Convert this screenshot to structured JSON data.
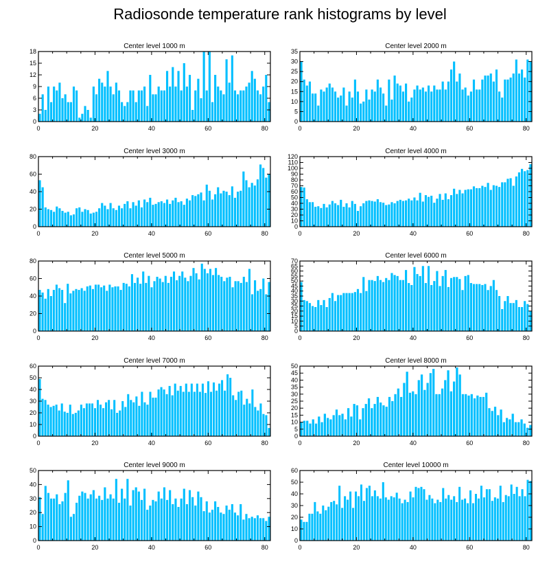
{
  "title": "Radiosonde temperature rank histograms by level",
  "colors": {
    "bar": "#00BFFF",
    "axis": "#000000",
    "background": "#FFFFFF"
  },
  "chart_data": [
    {
      "type": "bar",
      "title": "Center level 1000 m",
      "xlim": [
        0,
        82
      ],
      "ylim": [
        0,
        18
      ],
      "xticks": [
        0,
        20,
        40,
        60,
        80
      ],
      "yticks": [
        0,
        3,
        6,
        9,
        12,
        15,
        18
      ],
      "values": [
        2,
        7,
        3,
        9,
        5,
        9,
        8,
        10,
        6,
        7,
        5,
        5,
        9,
        8,
        1,
        2,
        4,
        3,
        1,
        9,
        7,
        11,
        10,
        9,
        13,
        9,
        7,
        10,
        8,
        5,
        4,
        5,
        8,
        8,
        5,
        8,
        8,
        9,
        4,
        12,
        7,
        7,
        9,
        8,
        8,
        13,
        9,
        14,
        9,
        13,
        8,
        15,
        9,
        12,
        3,
        8,
        11,
        6,
        18,
        8,
        18,
        5,
        12,
        9,
        8,
        7,
        16,
        10,
        17,
        8,
        7,
        8,
        8,
        9,
        10,
        13,
        11,
        8,
        7,
        9,
        12,
        5
      ],
      "xlabel": "",
      "ylabel": ""
    },
    {
      "type": "bar",
      "title": "Center level 2000 m",
      "xlim": [
        0,
        82
      ],
      "ylim": [
        0,
        35
      ],
      "xticks": [
        0,
        20,
        40,
        60,
        80
      ],
      "yticks": [
        0,
        5,
        10,
        15,
        20,
        25,
        30,
        35
      ],
      "values": [
        30,
        21,
        18,
        20,
        14,
        14,
        8,
        16,
        15,
        17,
        19,
        17,
        15,
        12,
        13,
        17,
        8,
        15,
        12,
        21,
        15,
        9,
        10,
        16,
        11,
        16,
        15,
        21,
        17,
        14,
        8,
        21,
        11,
        23,
        19,
        18,
        15,
        19,
        10,
        12,
        16,
        18,
        16,
        17,
        15,
        18,
        15,
        18,
        16,
        16,
        20,
        16,
        20,
        26,
        30,
        20,
        24,
        16,
        17,
        13,
        15,
        21,
        16,
        16,
        21,
        23,
        23,
        24,
        20,
        26,
        15,
        12,
        21,
        21,
        22,
        24,
        31,
        24,
        26,
        22,
        31,
        30
      ],
      "xlabel": "",
      "ylabel": ""
    },
    {
      "type": "bar",
      "title": "Center level 3000 m",
      "xlim": [
        0,
        82
      ],
      "ylim": [
        0,
        80
      ],
      "xticks": [
        0,
        20,
        40,
        60,
        80
      ],
      "yticks": [
        0,
        20,
        40,
        60,
        80
      ],
      "values": [
        53,
        45,
        22,
        20,
        19,
        17,
        23,
        21,
        18,
        16,
        17,
        13,
        14,
        21,
        22,
        17,
        20,
        19,
        15,
        16,
        17,
        21,
        27,
        24,
        20,
        27,
        21,
        19,
        24,
        21,
        26,
        29,
        21,
        28,
        24,
        30,
        22,
        31,
        28,
        33,
        25,
        26,
        28,
        29,
        27,
        31,
        26,
        30,
        33,
        28,
        29,
        25,
        32,
        30,
        36,
        35,
        37,
        39,
        30,
        48,
        41,
        31,
        37,
        45,
        38,
        41,
        40,
        36,
        46,
        33,
        40,
        41,
        63,
        53,
        45,
        50,
        47,
        54,
        71,
        67,
        56,
        60
      ],
      "xlabel": "",
      "ylabel": ""
    },
    {
      "type": "bar",
      "title": "Center level 4000 m",
      "xlim": [
        0,
        82
      ],
      "ylim": [
        0,
        120
      ],
      "xticks": [
        0,
        20,
        40,
        60,
        80
      ],
      "yticks": [
        0,
        10,
        20,
        30,
        40,
        50,
        60,
        70,
        80,
        90,
        100,
        110,
        120
      ],
      "values": [
        68,
        67,
        47,
        42,
        42,
        34,
        35,
        32,
        39,
        33,
        38,
        44,
        40,
        37,
        46,
        34,
        40,
        33,
        44,
        39,
        27,
        35,
        40,
        44,
        45,
        44,
        43,
        47,
        42,
        41,
        37,
        38,
        42,
        40,
        44,
        46,
        44,
        45,
        48,
        45,
        50,
        45,
        58,
        43,
        54,
        51,
        53,
        41,
        48,
        56,
        46,
        57,
        47,
        54,
        65,
        56,
        63,
        57,
        63,
        64,
        64,
        69,
        66,
        66,
        70,
        68,
        75,
        63,
        71,
        70,
        68,
        76,
        76,
        82,
        83,
        70,
        86,
        93,
        99,
        95,
        97,
        107
      ],
      "xlabel": "",
      "ylabel": ""
    },
    {
      "type": "bar",
      "title": "Center level 5000 m",
      "xlim": [
        0,
        82
      ],
      "ylim": [
        0,
        80
      ],
      "xticks": [
        0,
        20,
        40,
        60,
        80
      ],
      "yticks": [
        0,
        20,
        40,
        60,
        80
      ],
      "values": [
        47,
        44,
        37,
        48,
        40,
        47,
        53,
        49,
        47,
        32,
        54,
        43,
        46,
        48,
        47,
        49,
        46,
        51,
        52,
        48,
        53,
        53,
        50,
        52,
        46,
        53,
        50,
        51,
        51,
        47,
        55,
        54,
        51,
        65,
        55,
        61,
        54,
        68,
        55,
        63,
        50,
        57,
        62,
        60,
        56,
        63,
        55,
        62,
        68,
        58,
        63,
        68,
        61,
        57,
        63,
        72,
        66,
        59,
        77,
        71,
        66,
        71,
        64,
        72,
        64,
        62,
        57,
        61,
        62,
        50,
        57,
        57,
        55,
        62,
        56,
        71,
        42,
        58,
        46,
        48,
        60,
        42,
        56
      ],
      "xlabel": "",
      "ylabel": ""
    },
    {
      "type": "bar",
      "title": "Center level 6000 m",
      "xlim": [
        0,
        82
      ],
      "ylim": [
        0,
        70
      ],
      "xticks": [
        0,
        20,
        40,
        60,
        80
      ],
      "yticks": [
        0,
        5,
        10,
        15,
        20,
        25,
        30,
        35,
        40,
        45,
        50,
        55,
        60,
        65,
        70
      ],
      "values": [
        49,
        31,
        30,
        28,
        25,
        24,
        31,
        26,
        31,
        24,
        33,
        38,
        30,
        36,
        36,
        38,
        38,
        38,
        38,
        39,
        42,
        38,
        54,
        40,
        51,
        51,
        50,
        55,
        51,
        49,
        53,
        51,
        58,
        56,
        55,
        51,
        51,
        61,
        48,
        46,
        64,
        57,
        55,
        65,
        48,
        65,
        46,
        50,
        60,
        45,
        55,
        61,
        44,
        53,
        54,
        54,
        52,
        41,
        55,
        56,
        48,
        47,
        47,
        47,
        46,
        47,
        41,
        45,
        51,
        41,
        35,
        22,
        30,
        35,
        28,
        28,
        31,
        24,
        24,
        30,
        27,
        20
      ],
      "xlabel": "",
      "ylabel": ""
    },
    {
      "type": "bar",
      "title": "Center level 7000 m",
      "xlim": [
        0,
        82
      ],
      "ylim": [
        0,
        60
      ],
      "xticks": [
        0,
        20,
        40,
        60,
        80
      ],
      "yticks": [
        0,
        10,
        20,
        30,
        40,
        50,
        60
      ],
      "values": [
        49,
        32,
        31,
        27,
        25,
        26,
        27,
        22,
        28,
        21,
        20,
        27,
        19,
        20,
        22,
        27,
        24,
        28,
        28,
        28,
        24,
        31,
        27,
        24,
        29,
        31,
        23,
        31,
        20,
        22,
        30,
        25,
        36,
        31,
        29,
        34,
        26,
        38,
        29,
        27,
        38,
        33,
        33,
        40,
        42,
        40,
        36,
        43,
        35,
        45,
        39,
        43,
        38,
        45,
        38,
        45,
        38,
        45,
        38,
        45,
        37,
        47,
        38,
        46,
        39,
        45,
        48,
        39,
        53,
        50,
        35,
        31,
        38,
        39,
        27,
        32,
        28,
        40,
        25,
        22,
        28,
        19,
        18,
        7
      ],
      "xlabel": "",
      "ylabel": ""
    },
    {
      "type": "bar",
      "title": "Center level 8000 m",
      "xlim": [
        0,
        82
      ],
      "ylim": [
        0,
        50
      ],
      "xticks": [
        0,
        20,
        40,
        60,
        80
      ],
      "yticks": [
        0,
        5,
        10,
        15,
        20,
        25,
        30,
        35,
        40,
        45,
        50
      ],
      "values": [
        10,
        11,
        11,
        9,
        12,
        9,
        14,
        10,
        16,
        13,
        12,
        15,
        19,
        15,
        16,
        12,
        20,
        14,
        23,
        22,
        12,
        20,
        23,
        27,
        20,
        23,
        28,
        24,
        22,
        21,
        28,
        25,
        30,
        34,
        28,
        38,
        46,
        31,
        32,
        30,
        40,
        44,
        33,
        38,
        45,
        48,
        30,
        30,
        34,
        40,
        47,
        32,
        39,
        49,
        44,
        30,
        30,
        29,
        30,
        27,
        29,
        28,
        28,
        31,
        20,
        18,
        21,
        15,
        19,
        10,
        13,
        12,
        16,
        10,
        10,
        12,
        9,
        6,
        8
      ],
      "xlabel": "",
      "ylabel": ""
    },
    {
      "type": "bar",
      "title": "Center level 9000 m",
      "xlim": [
        0,
        82
      ],
      "ylim": [
        0,
        50
      ],
      "xticks": [
        0,
        20,
        40,
        60,
        80
      ],
      "yticks": [
        0,
        10,
        20,
        30,
        40,
        50
      ],
      "values": [
        31,
        19,
        39,
        34,
        30,
        30,
        33,
        26,
        28,
        34,
        43,
        17,
        19,
        27,
        32,
        35,
        34,
        30,
        33,
        36,
        30,
        32,
        29,
        38,
        30,
        33,
        30,
        44,
        27,
        37,
        30,
        44,
        25,
        36,
        38,
        35,
        29,
        37,
        22,
        25,
        29,
        28,
        35,
        30,
        38,
        29,
        36,
        26,
        30,
        24,
        30,
        37,
        26,
        36,
        31,
        25,
        35,
        31,
        21,
        28,
        20,
        22,
        28,
        24,
        20,
        19,
        25,
        22,
        26,
        20,
        18,
        26,
        15,
        19,
        16,
        17,
        16,
        18,
        16,
        16,
        14,
        17
      ],
      "xlabel": "",
      "ylabel": ""
    },
    {
      "type": "bar",
      "title": "Center level 10000 m",
      "xlim": [
        0,
        82
      ],
      "ylim": [
        0,
        60
      ],
      "xticks": [
        0,
        20,
        40,
        60,
        80
      ],
      "yticks": [
        0,
        10,
        20,
        30,
        40,
        50,
        60
      ],
      "values": [
        18,
        16,
        16,
        23,
        23,
        33,
        25,
        23,
        30,
        26,
        29,
        33,
        34,
        31,
        47,
        28,
        38,
        35,
        42,
        28,
        42,
        38,
        48,
        34,
        45,
        47,
        38,
        43,
        38,
        36,
        50,
        37,
        35,
        38,
        37,
        41,
        36,
        32,
        35,
        33,
        42,
        37,
        46,
        45,
        46,
        44,
        35,
        39,
        36,
        32,
        35,
        33,
        45,
        36,
        39,
        35,
        38,
        33,
        46,
        35,
        36,
        32,
        43,
        32,
        40,
        36,
        47,
        37,
        44,
        44,
        34,
        37,
        36,
        47,
        33,
        39,
        38,
        48,
        40,
        46,
        38,
        44,
        38,
        52,
        51
      ],
      "xlabel": "",
      "ylabel": ""
    }
  ]
}
